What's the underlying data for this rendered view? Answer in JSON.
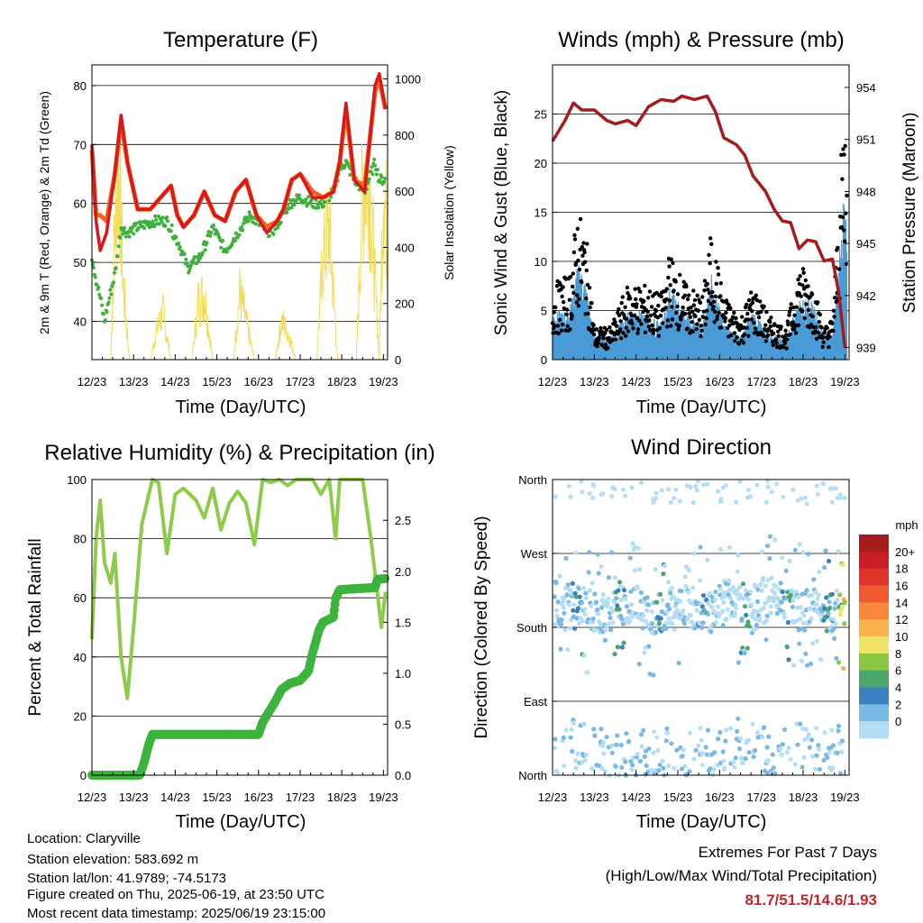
{
  "colors": {
    "temp2m": "#d7191c",
    "temp9m": "#f26522",
    "dewpoint": "#3cb13c",
    "solar": "#f2dc5d",
    "gust": "#000000",
    "wind": "#4b9bd6",
    "pressure": "#a51c1c",
    "rh": "#8fcb4a",
    "rain": "#3cb33c",
    "extremes": "#c0282d"
  },
  "x_tick_labels": [
    "12/23",
    "13/23",
    "14/23",
    "15/23",
    "16/23",
    "17/23",
    "18/23",
    "19/23"
  ],
  "footer": {
    "location": "Location: Claryville",
    "elevation": "Station elevation: 583.692 m",
    "latlon": "Station lat/lon: 41.9789; -74.5173",
    "created": "Figure created on Thu, 2025-06-19, at 23:50 UTC",
    "latest": "Most recent data timestamp: 2025/06/19 23:15:00",
    "extremes_title": "Extremes For Past 7 Days",
    "extremes_sub": "(High/Low/Max Wind/Total Precipitation)",
    "extremes_values": "81.7/51.5/14.6/1.93"
  },
  "chart_data": [
    {
      "type": "line",
      "title": "Temperature (F)",
      "xlabel": "Time (Day/UTC)",
      "ylabel": "2m & 9m T (Red, Orange) & 2m Td (Green)",
      "ylabel_right": "Solar Insolation (Yellow)",
      "xlim": [
        12,
        19.1
      ],
      "ylim": [
        33.5,
        83.5
      ],
      "ylim_right": [
        0,
        1050
      ],
      "yticks": [
        40,
        50,
        60,
        70,
        80
      ],
      "yticks_right": [
        0,
        200,
        400,
        600,
        800,
        1000
      ],
      "grid": true,
      "series": [
        {
          "role": "temp2m",
          "x": [
            12,
            12.1,
            12.2,
            12.35,
            12.55,
            12.7,
            12.85,
            13.1,
            13.4,
            13.65,
            13.9,
            14.05,
            14.2,
            14.45,
            14.7,
            14.95,
            15.2,
            15.45,
            15.7,
            15.95,
            16.2,
            16.45,
            16.6,
            16.8,
            17,
            17.3,
            17.55,
            17.8,
            17.95,
            18.1,
            18.3,
            18.55,
            18.8,
            18.9,
            19.05
          ],
          "y": [
            70,
            57,
            52,
            55,
            65,
            75,
            67,
            59,
            59,
            61,
            63,
            58,
            56,
            58,
            62,
            58,
            57,
            62,
            64,
            58,
            55,
            57,
            59,
            64,
            65,
            61,
            61,
            62,
            67,
            77,
            64,
            62,
            80,
            82,
            76
          ]
        },
        {
          "role": "temp9m",
          "x": [
            12,
            12.1,
            12.2,
            12.35,
            12.55,
            12.7,
            12.85,
            13.1,
            13.4,
            13.65,
            13.9,
            14.05,
            14.2,
            14.45,
            14.7,
            14.95,
            15.2,
            15.45,
            15.7,
            15.95,
            16.2,
            16.45,
            16.6,
            16.8,
            17,
            17.3,
            17.55,
            17.8,
            17.95,
            18.1,
            18.3,
            18.55,
            18.8,
            18.9,
            19.05
          ],
          "y": [
            69,
            58,
            58,
            57,
            65,
            74,
            67,
            59,
            59,
            61,
            63,
            58,
            56,
            58,
            62,
            58,
            57,
            62,
            64,
            58,
            56,
            57,
            59,
            64,
            65,
            62,
            61,
            62,
            67,
            76,
            64,
            63,
            79,
            81,
            76
          ]
        },
        {
          "role": "dewpoint",
          "x": [
            12,
            12.1,
            12.2,
            12.3,
            12.45,
            12.55,
            12.7,
            12.85,
            13.1,
            13.5,
            13.8,
            14.1,
            14.3,
            14.6,
            14.9,
            15.2,
            15.5,
            15.8,
            16.1,
            16.3,
            16.5,
            16.75,
            17,
            17.3,
            17.55,
            17.8,
            17.95,
            18.1,
            18.3,
            18.55,
            18.8,
            18.9,
            19.05
          ],
          "y": [
            51,
            47,
            44,
            40,
            45,
            48,
            56,
            55,
            56,
            57,
            57,
            53,
            49,
            51,
            56,
            52,
            55,
            58,
            56,
            55,
            57,
            60,
            61,
            60,
            60,
            62,
            66,
            67,
            64,
            62,
            67,
            64,
            64
          ]
        },
        {
          "role": "solar",
          "x": [
            12,
            12.45,
            12.55,
            12.65,
            12.75,
            12.9,
            13.4,
            13.55,
            13.7,
            13.9,
            14.4,
            14.55,
            14.7,
            14.9,
            15.4,
            15.55,
            15.7,
            15.9,
            16.4,
            16.55,
            16.7,
            16.9,
            17.4,
            17.55,
            17.7,
            17.9,
            18.35,
            18.5,
            18.65,
            18.9,
            19.0,
            19.1
          ],
          "y": [
            0,
            0,
            700,
            1000,
            400,
            0,
            0,
            150,
            250,
            0,
            0,
            300,
            350,
            0,
            0,
            350,
            200,
            0,
            0,
            200,
            150,
            0,
            0,
            550,
            700,
            0,
            0,
            900,
            1000,
            0,
            950,
            600
          ]
        }
      ]
    },
    {
      "type": "scatter",
      "title": "Winds (mph) & Pressure (mb)",
      "xlabel": "Time (Day/UTC)",
      "ylabel": "Sonic Wind & Gust (Blue, Black)",
      "ylabel_right": "Station Pressure (Maroon)",
      "xlim": [
        12,
        19.1
      ],
      "ylim": [
        0,
        30
      ],
      "ylim_right": [
        938.3,
        955.3
      ],
      "yticks": [
        0,
        5,
        10,
        15,
        20,
        25
      ],
      "yticks_right": [
        939,
        942,
        945,
        948,
        951,
        954
      ],
      "grid": true,
      "series": [
        {
          "role": "gust_envelope",
          "x": [
            12,
            12.4,
            12.6,
            12.8,
            13,
            13.4,
            13.8,
            14.2,
            14.6,
            14.8,
            15.2,
            15.6,
            15.8,
            16.1,
            16.5,
            16.8,
            17.2,
            17.6,
            17.9,
            18.2,
            18.5,
            18.7,
            18.85,
            18.95,
            19.05
          ],
          "y": [
            7,
            8,
            14,
            12,
            3,
            3,
            7,
            7,
            6,
            10,
            7,
            6,
            12,
            6,
            4,
            7,
            4,
            3,
            9,
            8,
            3,
            4,
            14,
            22,
            26
          ]
        },
        {
          "role": "wind_envelope",
          "x": [
            12,
            12.4,
            12.6,
            12.8,
            13,
            13.4,
            13.8,
            14.2,
            14.6,
            14.8,
            15.2,
            15.6,
            15.8,
            16.1,
            16.5,
            16.8,
            17.2,
            17.6,
            17.9,
            18.2,
            18.5,
            18.7,
            18.85,
            18.95,
            19.05
          ],
          "y": [
            4,
            4,
            8,
            6,
            2,
            2,
            4,
            4,
            3,
            6,
            4,
            3,
            7,
            3,
            2,
            4,
            2,
            2,
            5,
            5,
            2,
            2,
            8,
            13,
            12
          ]
        },
        {
          "role": "pressure",
          "x": [
            12,
            12.15,
            12.3,
            12.5,
            12.7,
            13,
            13.3,
            13.5,
            13.8,
            14,
            14.3,
            14.6,
            14.9,
            15.1,
            15.4,
            15.7,
            15.9,
            16.1,
            16.4,
            16.6,
            16.8,
            17.1,
            17.3,
            17.5,
            17.7,
            17.9,
            18.1,
            18.3,
            18.5,
            18.7,
            18.85,
            19.0
          ],
          "y": [
            950.9,
            951.5,
            952.1,
            953.1,
            952.7,
            952.7,
            952.1,
            951.9,
            952.1,
            951.8,
            952.9,
            953.3,
            953.2,
            953.5,
            953.3,
            953.5,
            952.6,
            951.1,
            950.7,
            950.1,
            948.9,
            948.0,
            947.0,
            946.3,
            946.2,
            944.7,
            945.2,
            945.1,
            944.0,
            944.1,
            942.2,
            939.0
          ]
        }
      ]
    },
    {
      "type": "line",
      "title": "Relative Humidity (%) & Precipitation (in)",
      "xlabel": "Time (Day/UTC)",
      "ylabel": "Percent & Total Rainfall",
      "xlim": [
        12,
        19.1
      ],
      "ylim": [
        0,
        100
      ],
      "ylim_right": [
        0,
        2.9
      ],
      "yticks": [
        0,
        20,
        40,
        60,
        80,
        100
      ],
      "yticks_right": [
        0,
        0.5,
        1.0,
        1.5,
        2.0,
        2.5
      ],
      "grid": true,
      "series": [
        {
          "role": "rh",
          "x": [
            12,
            12.1,
            12.2,
            12.3,
            12.45,
            12.55,
            12.7,
            12.85,
            13.0,
            13.2,
            13.45,
            13.6,
            13.8,
            14.0,
            14.2,
            14.5,
            14.7,
            14.9,
            15.1,
            15.3,
            15.5,
            15.7,
            15.9,
            16.1,
            16.3,
            16.5,
            16.7,
            16.9,
            17.1,
            17.3,
            17.5,
            17.7,
            17.85,
            17.95,
            18.1,
            18.3,
            18.5,
            18.7,
            18.85,
            18.95,
            19.05
          ],
          "y": [
            46,
            80,
            93,
            72,
            65,
            75,
            40,
            26,
            50,
            85,
            100,
            99,
            75,
            95,
            97,
            93,
            87,
            97,
            83,
            92,
            96,
            92,
            78,
            100,
            99,
            100,
            98,
            100,
            100,
            100,
            95,
            100,
            80,
            100,
            100,
            100,
            100,
            80,
            62,
            50,
            62
          ]
        },
        {
          "role": "rain",
          "x": [
            12,
            13.15,
            13.25,
            13.35,
            13.45,
            16.0,
            16.1,
            16.25,
            16.4,
            16.55,
            16.75,
            17.0,
            17.2,
            17.3,
            17.45,
            17.55,
            17.8,
            17.85,
            17.95,
            18.8,
            18.85,
            19.05
          ],
          "y": [
            0,
            0,
            0.12,
            0.28,
            0.4,
            0.4,
            0.52,
            0.62,
            0.72,
            0.84,
            0.9,
            0.93,
            1.02,
            1.2,
            1.42,
            1.5,
            1.55,
            1.73,
            1.82,
            1.84,
            1.92,
            1.93
          ]
        }
      ]
    },
    {
      "type": "scatter",
      "title": "Wind Direction",
      "xlabel": "Time (Day/UTC)",
      "ylabel": "Direction (Colored By Speed)",
      "xlim": [
        12,
        19.1
      ],
      "ylim": [
        0,
        360
      ],
      "yticks": [
        0,
        90,
        180,
        270,
        360
      ],
      "ytick_labels": [
        "North",
        "East",
        "South",
        "West",
        "North"
      ],
      "grid": true,
      "colorbar": {
        "title": "mph",
        "labels": [
          "20+",
          "18",
          "16",
          "14",
          "12",
          "10",
          "8",
          "6",
          "4",
          "2",
          "0"
        ],
        "colors": [
          "#a51c1c",
          "#c81e25",
          "#e0342a",
          "#ef5a30",
          "#f8883a",
          "#fbb04e",
          "#eee566",
          "#8cc642",
          "#4aa769",
          "#3981c1",
          "#7ab8e6",
          "#b5def5"
        ]
      },
      "series": [
        {
          "role": "main_cluster",
          "x": [
            12.2,
            12.5,
            12.9,
            13.3,
            13.6,
            14.0,
            14.3,
            14.6,
            15.0,
            15.3,
            15.7,
            16.0,
            16.3,
            16.7,
            17.0,
            17.3,
            17.7,
            18.0,
            18.3,
            18.6,
            18.9
          ],
          "y": [
            205,
            210,
            200,
            195,
            210,
            205,
            190,
            200,
            210,
            205,
            195,
            210,
            215,
            205,
            215,
            220,
            205,
            200,
            205,
            195,
            205
          ]
        },
        {
          "role": "north_cluster",
          "x": [
            12.1,
            12.4,
            13.2,
            14.3,
            15.2,
            15.9,
            16.5,
            17.3,
            18.1,
            18.5
          ],
          "y": [
            20,
            40,
            30,
            25,
            30,
            30,
            40,
            25,
            40,
            30
          ]
        }
      ]
    }
  ]
}
